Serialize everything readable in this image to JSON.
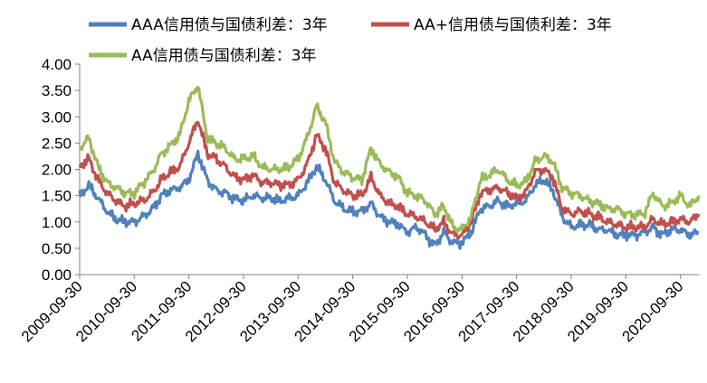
{
  "chart_data": {
    "type": "line",
    "title": "",
    "xlabel": "",
    "ylabel": "",
    "ylim": [
      0,
      4
    ],
    "y_ticks": [
      "0.00",
      "0.50",
      "1.00",
      "1.50",
      "2.00",
      "2.50",
      "3.00",
      "3.50",
      "4.00"
    ],
    "x_ticks": [
      "2009-09-30",
      "2010-09-30",
      "2011-09-30",
      "2012-09-30",
      "2013-09-30",
      "2014-09-30",
      "2015-09-30",
      "2016-09-30",
      "2017-09-30",
      "2018-09-30",
      "2019-09-30",
      "2020-09-30"
    ],
    "x_range": [
      "2009-09-30",
      "2021-01-31"
    ],
    "grid": false,
    "legend_position": "top",
    "x": [
      "2009-09-30",
      "2009-11-30",
      "2010-01-31",
      "2010-03-31",
      "2010-05-31",
      "2010-07-31",
      "2010-09-30",
      "2010-11-30",
      "2011-01-31",
      "2011-03-31",
      "2011-05-31",
      "2011-07-31",
      "2011-09-30",
      "2011-11-30",
      "2012-01-31",
      "2012-03-31",
      "2012-05-31",
      "2012-07-31",
      "2012-09-30",
      "2012-11-30",
      "2013-01-31",
      "2013-03-31",
      "2013-05-31",
      "2013-07-31",
      "2013-09-30",
      "2013-11-30",
      "2014-01-31",
      "2014-03-31",
      "2014-05-31",
      "2014-07-31",
      "2014-09-30",
      "2014-11-30",
      "2015-01-31",
      "2015-03-31",
      "2015-05-31",
      "2015-07-31",
      "2015-09-30",
      "2015-11-30",
      "2016-01-31",
      "2016-03-31",
      "2016-05-31",
      "2016-07-31",
      "2016-09-30",
      "2016-11-30",
      "2017-01-31",
      "2017-03-31",
      "2017-05-31",
      "2017-07-31",
      "2017-09-30",
      "2017-11-30",
      "2018-01-31",
      "2018-03-31",
      "2018-05-31",
      "2018-07-31",
      "2018-09-30",
      "2018-11-30",
      "2019-01-31",
      "2019-03-31",
      "2019-05-31",
      "2019-07-31",
      "2019-09-30",
      "2019-11-30",
      "2020-01-31",
      "2020-03-31",
      "2020-05-31",
      "2020-07-31",
      "2020-09-30",
      "2020-11-30",
      "2021-01-31"
    ],
    "series": [
      {
        "name": "AAA信用债与国债利差：3年",
        "color": "#4f81bd",
        "values": [
          1.5,
          1.7,
          1.45,
          1.2,
          1.05,
          1.0,
          1.0,
          1.1,
          1.25,
          1.5,
          1.6,
          1.65,
          1.8,
          2.3,
          1.8,
          1.6,
          1.55,
          1.45,
          1.4,
          1.5,
          1.45,
          1.45,
          1.4,
          1.45,
          1.5,
          1.75,
          2.05,
          1.8,
          1.4,
          1.25,
          1.2,
          1.2,
          1.35,
          1.1,
          1.0,
          0.95,
          0.8,
          0.9,
          0.75,
          0.55,
          0.8,
          0.6,
          0.6,
          0.8,
          1.25,
          1.3,
          1.4,
          1.3,
          1.35,
          1.4,
          1.7,
          1.8,
          1.6,
          1.1,
          0.9,
          0.95,
          0.95,
          0.85,
          0.85,
          0.75,
          0.75,
          0.75,
          0.8,
          0.9,
          0.75,
          0.85,
          0.85,
          0.75,
          0.8
        ]
      },
      {
        "name": "AA+信用债与国债利差：3年",
        "color": "#c0504d",
        "values": [
          2.05,
          2.2,
          1.8,
          1.55,
          1.4,
          1.3,
          1.35,
          1.4,
          1.55,
          1.8,
          1.95,
          2.05,
          2.5,
          2.95,
          2.3,
          2.2,
          2.05,
          1.85,
          1.8,
          1.9,
          1.75,
          1.75,
          1.7,
          1.7,
          1.8,
          2.1,
          2.65,
          2.4,
          1.75,
          1.6,
          1.5,
          1.5,
          1.85,
          1.5,
          1.35,
          1.3,
          1.15,
          1.1,
          1.0,
          0.85,
          1.0,
          0.75,
          0.75,
          1.0,
          1.55,
          1.6,
          1.65,
          1.55,
          1.45,
          1.55,
          1.95,
          2.0,
          1.85,
          1.25,
          1.15,
          1.2,
          1.15,
          1.1,
          1.0,
          0.95,
          0.9,
          0.9,
          0.9,
          1.05,
          0.95,
          1.0,
          1.05,
          1.0,
          1.15
        ]
      },
      {
        "name": "AA信用债与国债利差：3年",
        "color": "#9bbb59",
        "values": [
          2.4,
          2.6,
          2.05,
          1.75,
          1.65,
          1.55,
          1.55,
          1.75,
          1.95,
          2.3,
          2.45,
          2.65,
          3.3,
          3.6,
          2.6,
          2.5,
          2.4,
          2.2,
          2.2,
          2.25,
          2.05,
          2.0,
          2.0,
          2.05,
          2.2,
          2.6,
          3.2,
          2.9,
          2.15,
          1.95,
          1.85,
          1.8,
          2.4,
          2.1,
          1.95,
          1.85,
          1.55,
          1.5,
          1.4,
          1.15,
          1.3,
          0.9,
          0.85,
          1.1,
          1.8,
          1.9,
          2.0,
          1.8,
          1.7,
          1.75,
          2.15,
          2.25,
          2.15,
          1.65,
          1.55,
          1.5,
          1.4,
          1.35,
          1.25,
          1.25,
          1.15,
          1.15,
          1.15,
          1.55,
          1.3,
          1.35,
          1.5,
          1.3,
          1.5
        ]
      }
    ]
  }
}
